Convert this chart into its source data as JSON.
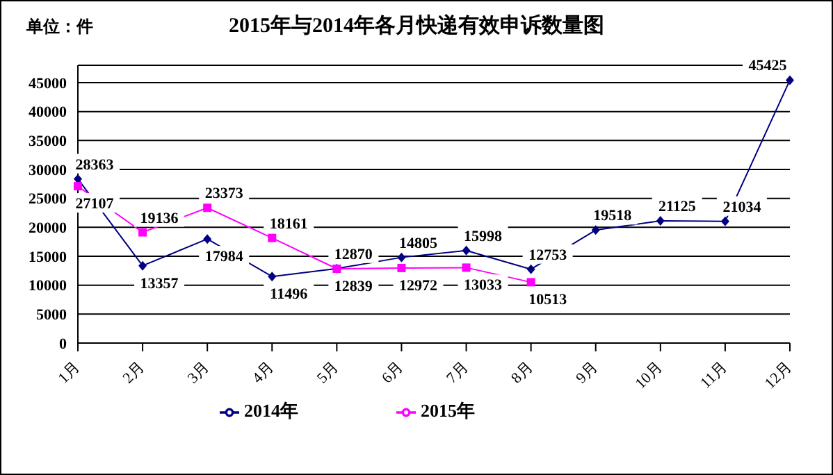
{
  "chart_data": {
    "type": "line",
    "title": "2015年与2014年各月快递有效申诉数量图",
    "annotations": [
      "单位：件"
    ],
    "categories": [
      "1月",
      "2月",
      "3月",
      "4月",
      "5月",
      "6月",
      "7月",
      "8月",
      "9月",
      "10月",
      "11月",
      "12月"
    ],
    "series": [
      {
        "name": "2014年",
        "color": "#000080",
        "marker": "diamond",
        "values": [
          28363,
          13357,
          17984,
          11496,
          12870,
          14805,
          15998,
          12753,
          19518,
          21125,
          21034,
          45425
        ]
      },
      {
        "name": "2015年",
        "color": "#ff00ff",
        "marker": "square",
        "values": [
          27107,
          19136,
          23373,
          18161,
          12839,
          12972,
          13033,
          10513,
          null,
          null,
          null,
          null
        ]
      }
    ],
    "ylim": [
      0,
      48000
    ],
    "yticks": [
      0,
      5000,
      10000,
      15000,
      20000,
      25000,
      30000,
      35000,
      40000,
      45000
    ],
    "grid": "y",
    "legend": "bottom",
    "data_labels": true
  }
}
